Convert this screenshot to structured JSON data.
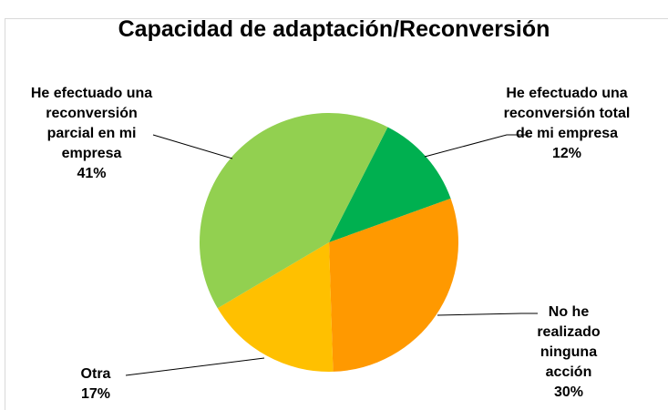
{
  "chart_data": {
    "type": "pie",
    "title": "Capacidad de adaptación/Reconversión",
    "categories": [
      "He efectuado una reconversión total de mi empresa",
      "No he realizado ninguna acción",
      "Otra",
      "He efectuado una reconversión parcial en mi empresa"
    ],
    "values": [
      12,
      30,
      17,
      41
    ],
    "value_labels": [
      "12%",
      "30%",
      "17%",
      "41%"
    ],
    "colors": [
      "#00b050",
      "#ff9900",
      "#ffc000",
      "#92d050"
    ]
  }
}
